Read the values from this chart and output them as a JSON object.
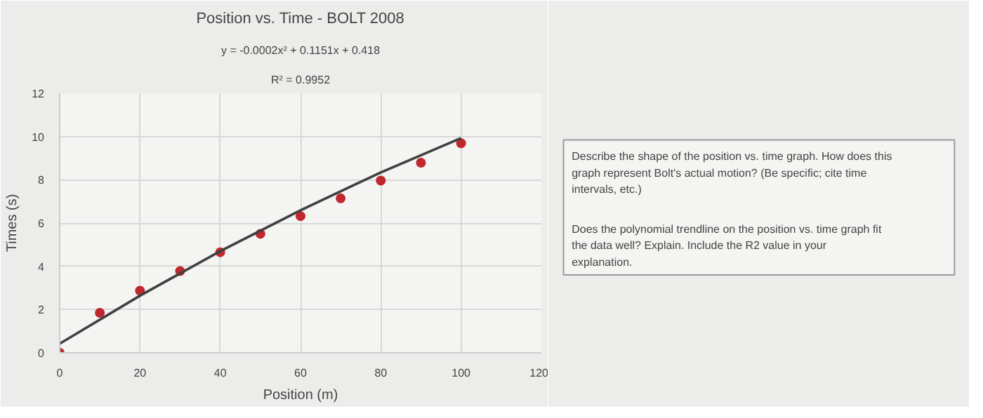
{
  "chart_data": [
    {
      "type": "scatter",
      "title": "Position vs. Time - BOLT 2008",
      "xlabel": "Position (m)",
      "ylabel": "Times (s)",
      "annotations": [
        "y = -0.0002x² + 0.1151x + 0.418",
        "R² = 0.9952"
      ],
      "x": [
        0,
        10,
        20,
        30,
        40,
        50,
        60,
        70,
        80,
        90,
        100
      ],
      "series": [
        {
          "type": "scatter",
          "marker": "circle",
          "color": "#c0282f",
          "values": [
            0,
            1.85,
            2.87,
            3.78,
            4.65,
            5.5,
            6.32,
            7.14,
            7.96,
            8.79,
            9.69
          ]
        },
        {
          "type": "line",
          "marker": "none",
          "color": "#404040",
          "x": [
            0,
            20,
            40,
            60,
            80,
            100
          ],
          "values": [
            0.42,
            2.64,
            4.7,
            6.59,
            8.34,
            9.93
          ]
        }
      ],
      "xlim": [
        0,
        120
      ],
      "ylim": [
        0,
        12
      ],
      "xticks": [
        0,
        20,
        40,
        60,
        80,
        100,
        120
      ],
      "yticks": [
        0,
        2,
        4,
        6,
        8,
        10,
        12
      ],
      "grid": true
    },
    {
      "type": "other",
      "annotations": [
        "Describe the shape of the position vs. time graph. How does this graph represent Bolt's actual motion? (Be specific; cite time intervals, etc.)",
        "Does the polynomial trendline on the position vs. time graph fit the data well? Explain. Include the R2 value in your explanation."
      ]
    }
  ]
}
